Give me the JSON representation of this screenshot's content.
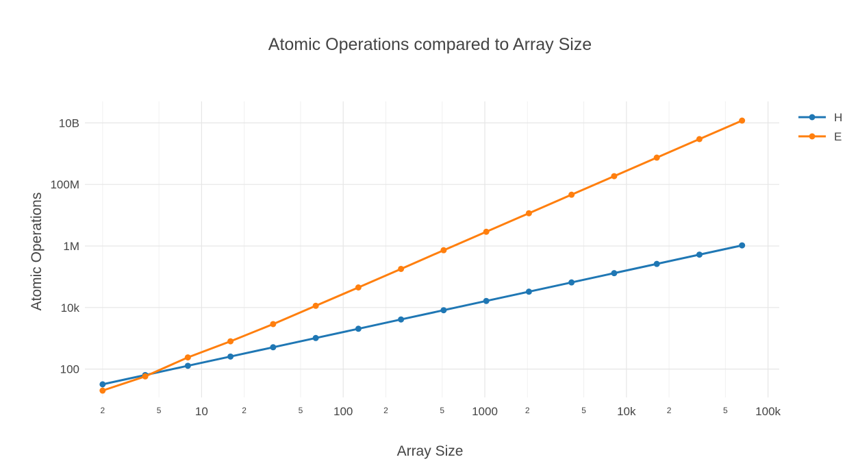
{
  "chart_data": {
    "type": "line",
    "title": "Atomic Operations compared to Array Size",
    "xlabel": "Array Size",
    "ylabel": "Atomic Operations",
    "x_scale": "log",
    "y_scale": "log",
    "xlim": [
      1.5,
      120000
    ],
    "ylim": [
      12,
      50000000000
    ],
    "grid": true,
    "legend_position": "top-right",
    "x_ticks": [
      {
        "value": 2,
        "label": "2",
        "major": false
      },
      {
        "value": 5,
        "label": "5",
        "major": false
      },
      {
        "value": 10,
        "label": "10",
        "major": true
      },
      {
        "value": 20,
        "label": "2",
        "major": false
      },
      {
        "value": 50,
        "label": "5",
        "major": false
      },
      {
        "value": 100,
        "label": "100",
        "major": true
      },
      {
        "value": 200,
        "label": "2",
        "major": false
      },
      {
        "value": 500,
        "label": "5",
        "major": false
      },
      {
        "value": 1000,
        "label": "1000",
        "major": true
      },
      {
        "value": 2000,
        "label": "2",
        "major": false
      },
      {
        "value": 5000,
        "label": "5",
        "major": false
      },
      {
        "value": 10000,
        "label": "10k",
        "major": true
      },
      {
        "value": 20000,
        "label": "2",
        "major": false
      },
      {
        "value": 50000,
        "label": "5",
        "major": false
      },
      {
        "value": 100000,
        "label": "100k",
        "major": true
      }
    ],
    "y_ticks": [
      {
        "value": 100,
        "label": "100"
      },
      {
        "value": 10000,
        "label": "10k"
      },
      {
        "value": 1000000,
        "label": "1M"
      },
      {
        "value": 100000000,
        "label": "100M"
      },
      {
        "value": 10000000000,
        "label": "10B"
      }
    ],
    "x": [
      2,
      4,
      8,
      16,
      32,
      64,
      128,
      256,
      512,
      1024,
      2048,
      4096,
      8192,
      16384,
      32768,
      65536
    ],
    "series": [
      {
        "name": "H",
        "color": "#1f77b4",
        "values": [
          32,
          64,
          128,
          256,
          512,
          1024,
          2048,
          4096,
          8192,
          16384,
          32768,
          65536,
          131072,
          262144,
          524288,
          1048576
        ]
      },
      {
        "name": "E",
        "color": "#ff7f0e",
        "values": [
          20,
          58,
          240,
          800,
          2900,
          11400,
          45000,
          180000,
          730000,
          2900000,
          11600000,
          46500000,
          186000000,
          745000000,
          2980000000,
          11900000000
        ]
      }
    ]
  }
}
